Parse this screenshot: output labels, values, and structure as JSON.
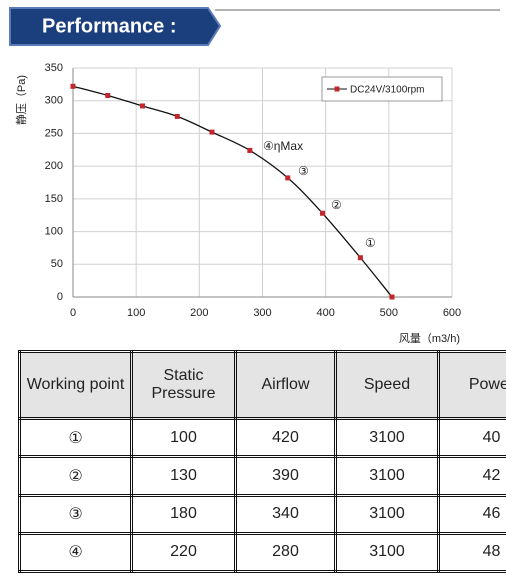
{
  "header": {
    "title": "Performance :"
  },
  "chart_data": {
    "type": "line",
    "x": [
      0,
      55,
      110,
      165,
      220,
      280,
      340,
      395,
      455,
      505
    ],
    "series": [
      {
        "name": "DC24V/3100rpm",
        "color": "#c0282d",
        "values": [
          322,
          308,
          292,
          276,
          252,
          224,
          182,
          128,
          60,
          0
        ]
      }
    ],
    "xlabel": "风量（m3/h)",
    "ylabel": "静压（Pa)",
    "xlim": [
      0,
      600
    ],
    "xticks": [
      0,
      100,
      200,
      300,
      400,
      500,
      600
    ],
    "ylim": [
      0,
      350
    ],
    "yticks": [
      0,
      50,
      100,
      150,
      200,
      250,
      300,
      350
    ],
    "grid": true,
    "legend": "upper right",
    "annotations": [
      "④ηMax",
      "③",
      "②",
      "①"
    ]
  },
  "table": {
    "header": [
      "Working point",
      "Static Pressure",
      "Airflow",
      "Speed",
      "Power"
    ],
    "rows": [
      [
        "①",
        100,
        420,
        3100,
        40
      ],
      [
        "②",
        130,
        390,
        3100,
        42
      ],
      [
        "③",
        180,
        340,
        3100,
        46
      ],
      [
        "④",
        220,
        280,
        3100,
        48
      ]
    ]
  }
}
